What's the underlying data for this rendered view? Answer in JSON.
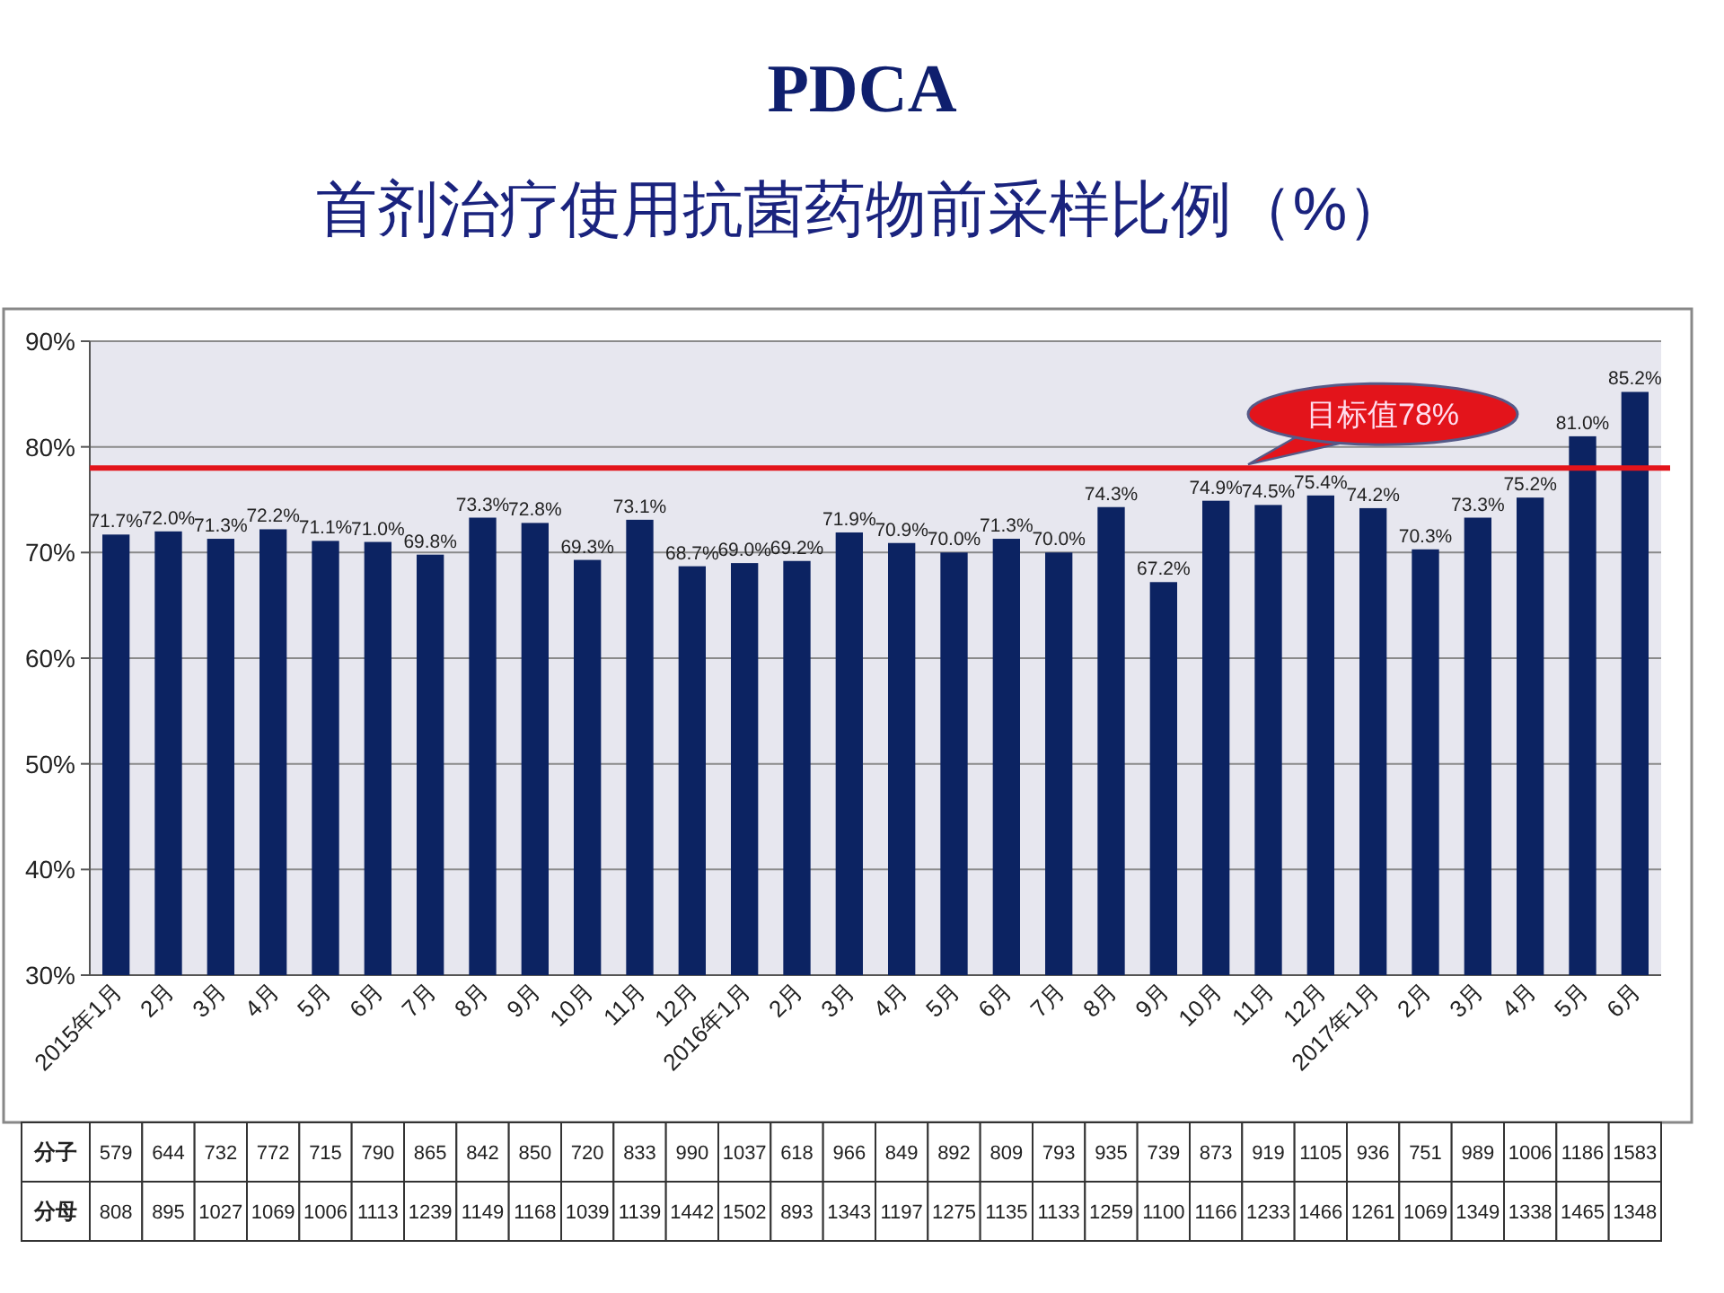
{
  "chart_data": {
    "type": "bar",
    "title": "PDCA",
    "subtitle": "首剂治疗使用抗菌药物前采样比例（%）",
    "categories": [
      "2015年1月",
      "2月",
      "3月",
      "4月",
      "5月",
      "6月",
      "7月",
      "8月",
      "9月",
      "10月",
      "11月",
      "12月",
      "2016年1月",
      "2月",
      "3月",
      "4月",
      "5月",
      "6月",
      "7月",
      "8月",
      "9月",
      "10月",
      "11月",
      "12月",
      "2017年1月",
      "2月",
      "3月",
      "4月",
      "5月",
      "6月"
    ],
    "series": [
      {
        "color": "#0c2362",
        "values": [
          71.7,
          72.0,
          71.3,
          72.2,
          71.1,
          71.0,
          69.8,
          73.3,
          72.8,
          69.3,
          73.1,
          68.7,
          69.0,
          69.2,
          71.9,
          70.9,
          70.0,
          71.3,
          70.0,
          74.3,
          67.2,
          74.9,
          74.5,
          75.4,
          74.2,
          70.3,
          73.3,
          75.2,
          81.0,
          85.2
        ],
        "value_labels": [
          "71.7%",
          "72.0%",
          "71.3%",
          "72.2%",
          "71.1%",
          "71.0%",
          "69.8%",
          "73.3%",
          "72.8%",
          "69.3%",
          "73.1%",
          "68.7%",
          "69.0%",
          "69.2%",
          "71.9%",
          "70.9%",
          "70.0%",
          "71.3%",
          "70.0%",
          "74.3%",
          "67.2%",
          "74.9%",
          "74.5%",
          "75.4%",
          "74.2%",
          "70.3%",
          "73.3%",
          "75.2%",
          "81.0%",
          "85.2%"
        ]
      }
    ],
    "ylim": [
      30,
      90
    ],
    "yticks": [
      {
        "value": 30,
        "label": "30%"
      },
      {
        "value": 40,
        "label": "40%"
      },
      {
        "value": 50,
        "label": "50%"
      },
      {
        "value": 60,
        "label": "60%"
      },
      {
        "value": 70,
        "label": "70%"
      },
      {
        "value": 80,
        "label": "80%"
      },
      {
        "value": 90,
        "label": "90%"
      }
    ],
    "grid": "y",
    "ref_lines": [
      {
        "axis": "y",
        "value": 78,
        "label": "目标值78%",
        "color": "#e3141b"
      }
    ],
    "annotations": [
      "分子",
      "579",
      "644",
      "732",
      "772",
      "715",
      "790",
      "865",
      "842",
      "850",
      "720",
      "833",
      "990",
      "1037",
      "618",
      "966",
      "849",
      "892",
      "809",
      "793",
      "935",
      "739",
      "873",
      "919",
      "1105",
      "936",
      "751",
      "989",
      "1006",
      "1186",
      "1583",
      "分母",
      "808",
      "895",
      "1027",
      "1069",
      "1006",
      "1113",
      "1239",
      "1149",
      "1168",
      "1039",
      "1139",
      "1442",
      "1502",
      "893",
      "1343",
      "1197",
      "1275",
      "1135",
      "1133",
      "1259",
      "1100",
      "1166",
      "1233",
      "1466",
      "1261",
      "1069",
      "1349",
      "1338",
      "1465",
      "1348"
    ]
  }
}
